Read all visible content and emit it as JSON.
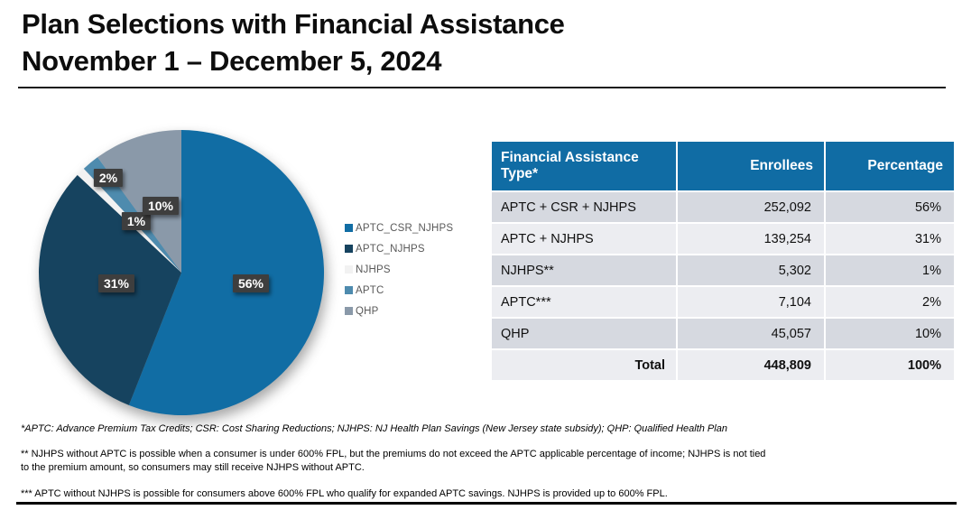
{
  "header": {
    "title_line1": "Plan Selections with Financial Assistance",
    "title_line2": "November 1 – December 5, 2024"
  },
  "chart_data": {
    "type": "pie",
    "title": "Plan Selections with Financial Assistance, November 1 – December 5, 2024",
    "categories": [
      "APTC_CSR_NJHPS",
      "APTC_NJHPS",
      "NJHPS",
      "APTC",
      "QHP"
    ],
    "values": [
      56,
      31,
      1,
      2,
      10
    ],
    "unit": "percent",
    "slice_labels": [
      "56%",
      "31%",
      "1%",
      "2%",
      "10%"
    ],
    "colors": [
      "#116DA4",
      "#16435F",
      "#F2F2F2",
      "#4E8BAE",
      "#8A99A9"
    ],
    "start_angle_deg": 0,
    "direction": "clockwise",
    "legend_position": "right",
    "label_box_color": "#3E3E3E"
  },
  "table": {
    "headers": [
      "Financial Assistance Type*",
      "Enrollees",
      "Percentage"
    ],
    "rows": [
      [
        "APTC + CSR + NJHPS",
        "252,092",
        "56%"
      ],
      [
        "APTC + NJHPS",
        "139,254",
        "31%"
      ],
      [
        "NJHPS**",
        "5,302",
        "1%"
      ],
      [
        "APTC***",
        "7,104",
        "2%"
      ],
      [
        "QHP",
        "45,057",
        "10%"
      ],
      [
        "Total",
        "448,809",
        "100%"
      ]
    ],
    "header_bg": "#106CA4",
    "row_alt_colors": [
      "#D6D9E0",
      "#ECEDF1"
    ]
  },
  "footnotes": [
    "*APTC: Advance Premium Tax Credits; CSR: Cost Sharing Reductions; NJHPS: NJ Health Plan Savings (New Jersey state subsidy); QHP: Qualified Health Plan",
    "** NJHPS without APTC is possible when a consumer is under 600% FPL, but the premiums do not exceed the APTC applicable percentage of income; NJHPS is not tied to the premium amount, so consumers may still receive NJHPS without APTC.",
    "*** APTC without NJHPS is possible for consumers above 600% FPL who qualify for expanded APTC savings. NJHPS is provided up to 600% FPL."
  ]
}
